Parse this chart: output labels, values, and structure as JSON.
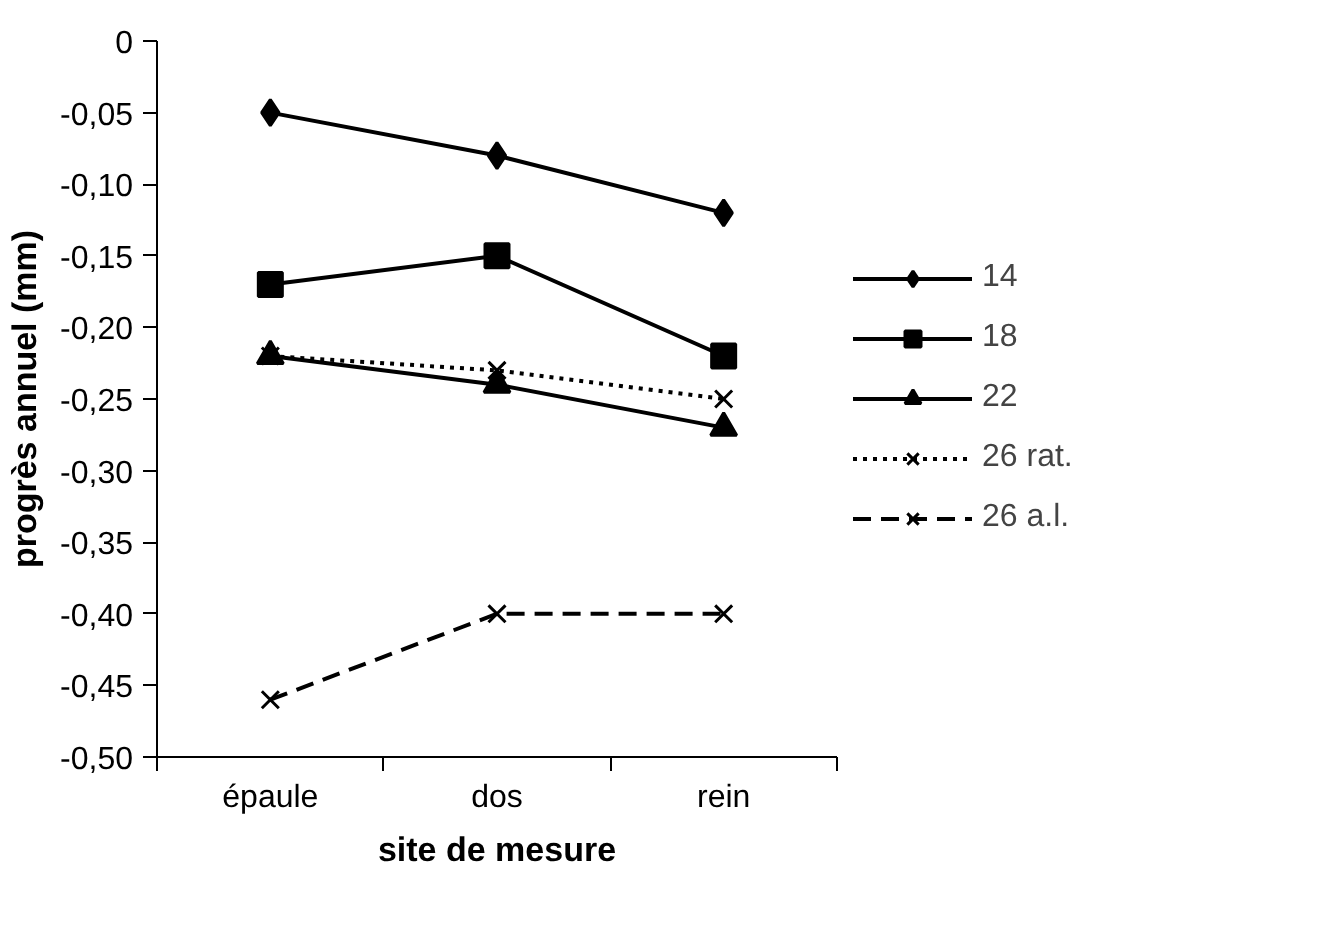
{
  "chart_data": {
    "type": "line",
    "xlabel": "site de mesure",
    "ylabel": "progrès annuel (mm)",
    "categories": [
      "épaule",
      "dos",
      "rein"
    ],
    "ylim": [
      -0.5,
      0
    ],
    "yticks": [
      {
        "value": 0,
        "label": "0"
      },
      {
        "value": -0.05,
        "label": "-0,05"
      },
      {
        "value": -0.1,
        "label": "-0,10"
      },
      {
        "value": -0.15,
        "label": "-0,15"
      },
      {
        "value": -0.2,
        "label": "-0,20"
      },
      {
        "value": -0.25,
        "label": "-0,25"
      },
      {
        "value": -0.3,
        "label": "-0,30"
      },
      {
        "value": -0.35,
        "label": "-0,35"
      },
      {
        "value": -0.4,
        "label": "-0,40"
      },
      {
        "value": -0.45,
        "label": "-0,45"
      },
      {
        "value": -0.5,
        "label": "-0,50"
      }
    ],
    "grid": false,
    "legend": "right",
    "series": [
      {
        "name": "14",
        "color": "#000000",
        "marker": "diamond",
        "line_style": "solid",
        "values": [
          -0.05,
          -0.08,
          -0.12
        ]
      },
      {
        "name": "18",
        "color": "#000000",
        "marker": "square",
        "line_style": "solid",
        "values": [
          -0.17,
          -0.15,
          -0.22
        ]
      },
      {
        "name": "22",
        "color": "#000000",
        "marker": "triangle",
        "line_style": "solid",
        "values": [
          -0.22,
          -0.24,
          -0.27
        ]
      },
      {
        "name": "26 rat.",
        "color": "#000000",
        "marker": "cross",
        "line_style": "dotted",
        "values": [
          -0.22,
          -0.23,
          -0.25
        ]
      },
      {
        "name": "26 a.l.",
        "color": "#000000",
        "marker": "cross",
        "line_style": "dashed",
        "values": [
          -0.46,
          -0.4,
          -0.4
        ]
      }
    ]
  }
}
